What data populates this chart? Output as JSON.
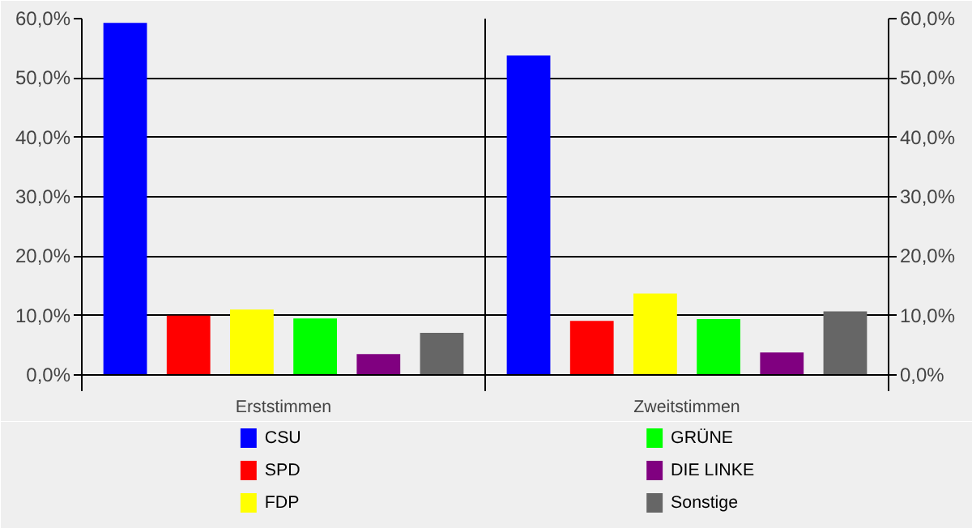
{
  "chart_data": {
    "type": "bar",
    "categories": [
      "Erststimmen",
      "Zweitstimmen"
    ],
    "series": [
      {
        "name": "CSU",
        "color": "#0000ff",
        "values": [
          59.3,
          53.8
        ]
      },
      {
        "name": "SPD",
        "color": "#ff0000",
        "values": [
          10.0,
          9.1
        ]
      },
      {
        "name": "FDP",
        "color": "#ffff00",
        "values": [
          11.0,
          13.7
        ]
      },
      {
        "name": "GRÜNE",
        "color": "#00ff00",
        "values": [
          9.5,
          9.4
        ]
      },
      {
        "name": "DIE LINKE",
        "color": "#800080",
        "values": [
          3.5,
          3.8
        ]
      },
      {
        "name": "Sonstige",
        "color": "#666666",
        "values": [
          7.1,
          10.7
        ]
      }
    ],
    "ylim": [
      0,
      60
    ],
    "yticks": [
      {
        "value": 0,
        "label": "0,0%"
      },
      {
        "value": 10,
        "label": "10,0%"
      },
      {
        "value": 20,
        "label": "20,0%"
      },
      {
        "value": 30,
        "label": "30,0%"
      },
      {
        "value": 40,
        "label": "40,0%"
      },
      {
        "value": 50,
        "label": "50,0%"
      },
      {
        "value": 60,
        "label": "60,0%"
      }
    ],
    "y2lim": [
      0,
      60
    ],
    "y2ticks": [
      {
        "value": 0,
        "label": "0,0%"
      },
      {
        "value": 10,
        "label": "10,0%"
      },
      {
        "value": 20,
        "label": "20,0%"
      },
      {
        "value": 30,
        "label": "30,0%"
      },
      {
        "value": 40,
        "label": "40,0%"
      },
      {
        "value": 50,
        "label": "50,0%"
      },
      {
        "value": 60,
        "label": "60,0%"
      }
    ],
    "grid": true,
    "legend": "bottom"
  }
}
